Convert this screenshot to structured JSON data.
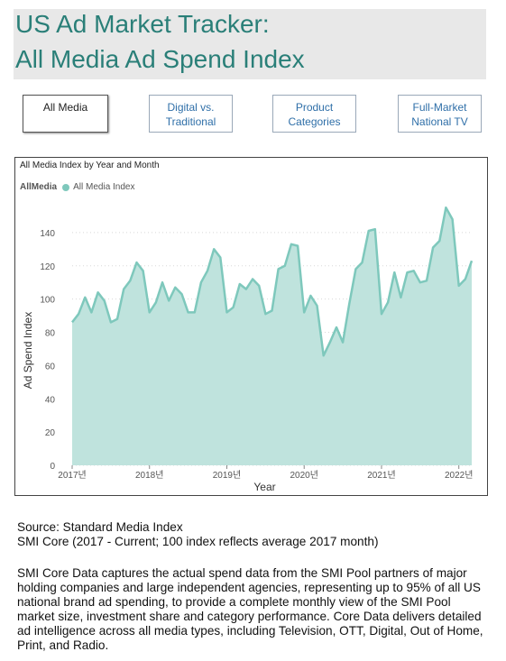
{
  "header": {
    "title_line1": "US Ad Market Tracker:",
    "title_line2": "All Media Ad Spend Index"
  },
  "tabs": [
    {
      "line1": "All Media",
      "line2": "",
      "active": true
    },
    {
      "line1": "Digital vs.",
      "line2": "Traditional",
      "active": false
    },
    {
      "line1": "Product",
      "line2": "Categories",
      "active": false
    },
    {
      "line1": "Full-Market",
      "line2": "National TV",
      "active": false
    }
  ],
  "chart": {
    "title": "All Media Index by Year and Month",
    "legend_label": "AllMedia",
    "legend_item": "All Media Index"
  },
  "footer": {
    "source_line1": "Source: Standard Media Index",
    "source_line2": "SMI Core (2017 - Current; 100 index reflects average 2017 month)",
    "description": "SMI Core Data captures the actual spend data from the SMI Pool partners of major holding companies and large independent agencies, representing up to 95% of all US national brand ad spending, to provide a complete monthly view of the SMI Pool market size, investment share and category performance. Core Data delivers detailed ad intelligence across all media types, including Television, OTT, Digital, Out of Home, Print, and Radio."
  },
  "colors": {
    "accent": "#2a7f78",
    "series_fill": "#bfe3dd",
    "series_line": "#7ec8bc"
  },
  "chart_data": {
    "type": "area",
    "title": "All Media Index by Year and Month",
    "xlabel": "Year",
    "ylabel": "Ad Spend Index",
    "ylim": [
      0,
      160
    ],
    "yticks": [
      0,
      20,
      40,
      60,
      80,
      100,
      120,
      140
    ],
    "xticks": [
      "2017년",
      "2018년",
      "2019년",
      "2020년",
      "2021년",
      "2022년"
    ],
    "grid": true,
    "legend": "top-left",
    "series": [
      {
        "name": "All Media Index",
        "x_start": "2017-01",
        "values": [
          86,
          91,
          101,
          92,
          104,
          99,
          86,
          88,
          106,
          111,
          122,
          117,
          92,
          98,
          110,
          99,
          107,
          103,
          92,
          92,
          110,
          117,
          130,
          125,
          92,
          95,
          109,
          106,
          112,
          108,
          91,
          93,
          118,
          120,
          133,
          132,
          92,
          102,
          96,
          66,
          74,
          83,
          74,
          97,
          118,
          122,
          141,
          142,
          91,
          98,
          116,
          101,
          116,
          117,
          110,
          111,
          131,
          135,
          155,
          148,
          108,
          112,
          123
        ]
      }
    ]
  }
}
